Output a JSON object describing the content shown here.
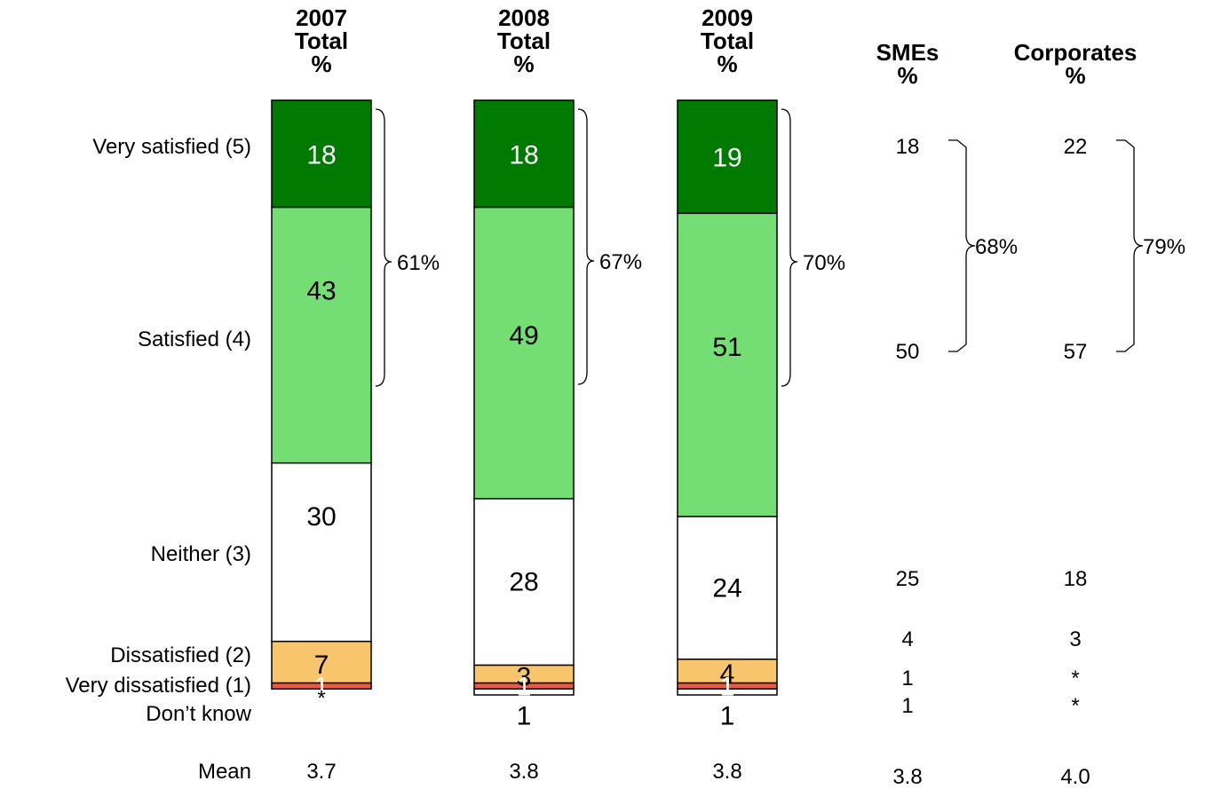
{
  "chart_data": {
    "type": "bar",
    "stacked": true,
    "categories": [
      "Very satisfied (5)",
      "Satisfied (4)",
      "Neither (3)",
      "Dissatisfied (2)",
      "Very dissatisfied (1)",
      "Don’t know"
    ],
    "row_label_mean": "Mean",
    "colors": {
      "Very satisfied (5)": "#007a00",
      "Satisfied (4)": "#74dd74",
      "Neither (3)": "#ffffff",
      "Dissatisfied (2)": "#f8c46c",
      "Very dissatisfied (1)": "#e85a4a",
      "Don’t know": "#ffffff"
    },
    "bars": [
      {
        "header": [
          "2007",
          "Total",
          "%"
        ],
        "segments": [
          {
            "category": "Very satisfied (5)",
            "label": "18",
            "value": 18
          },
          {
            "category": "Satisfied (4)",
            "label": "43",
            "value": 43
          },
          {
            "category": "Neither (3)",
            "label": "30",
            "value": 30
          },
          {
            "category": "Dissatisfied (2)",
            "label": "7",
            "value": 7
          },
          {
            "category": "Very dissatisfied (1)",
            "label": "1",
            "value": 1
          },
          {
            "category": "Don’t know",
            "label": "*",
            "value": 0
          }
        ],
        "net_satisfied": "61%",
        "mean": "3.7"
      },
      {
        "header": [
          "2008",
          "Total",
          "%"
        ],
        "segments": [
          {
            "category": "Very satisfied (5)",
            "label": "18",
            "value": 18
          },
          {
            "category": "Satisfied (4)",
            "label": "49",
            "value": 49
          },
          {
            "category": "Neither (3)",
            "label": "28",
            "value": 28
          },
          {
            "category": "Dissatisfied (2)",
            "label": "3",
            "value": 3
          },
          {
            "category": "Very dissatisfied (1)",
            "label": "1",
            "value": 1
          },
          {
            "category": "Don’t know",
            "label": "1",
            "value": 1
          }
        ],
        "net_satisfied": "67%",
        "mean": "3.8"
      },
      {
        "header": [
          "2009",
          "Total",
          "%"
        ],
        "segments": [
          {
            "category": "Very satisfied (5)",
            "label": "19",
            "value": 19
          },
          {
            "category": "Satisfied (4)",
            "label": "51",
            "value": 51
          },
          {
            "category": "Neither (3)",
            "label": "24",
            "value": 24
          },
          {
            "category": "Dissatisfied (2)",
            "label": "4",
            "value": 4
          },
          {
            "category": "Very dissatisfied (1)",
            "label": "1",
            "value": 1
          },
          {
            "category": "Don’t know",
            "label": "1",
            "value": 1
          }
        ],
        "net_satisfied": "70%",
        "mean": "3.8"
      }
    ],
    "breakdown_columns": [
      {
        "header": [
          "SMEs",
          "%"
        ],
        "values": [
          "18",
          "50",
          "25",
          "4",
          "1",
          "1"
        ],
        "net_satisfied": "68%",
        "mean": "3.8"
      },
      {
        "header": [
          "Corporates",
          "%"
        ],
        "values": [
          "22",
          "57",
          "18",
          "3",
          "*",
          "*"
        ],
        "net_satisfied": "79%",
        "mean": "4.0"
      }
    ]
  }
}
